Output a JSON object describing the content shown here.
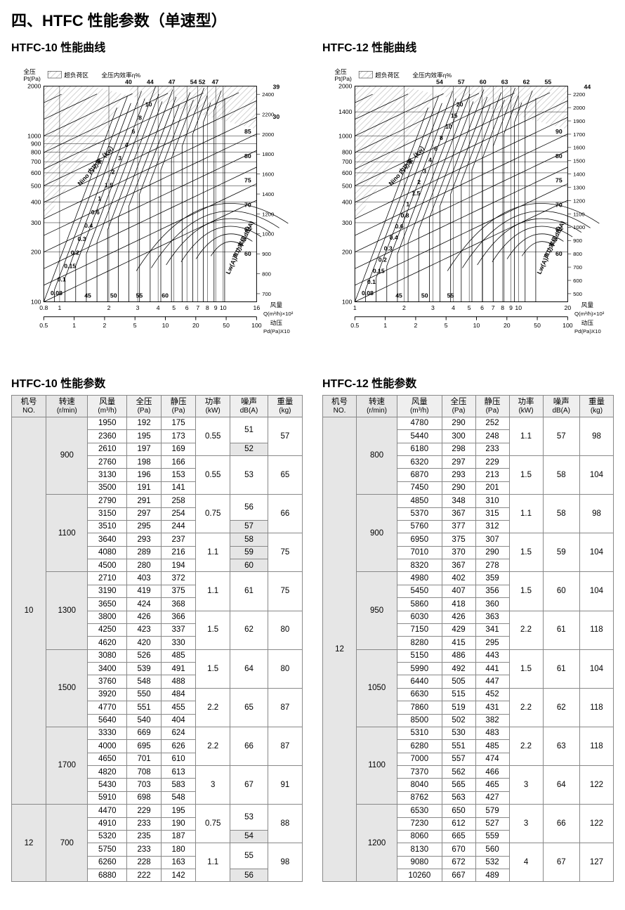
{
  "page_title": "四、HTFC 性能参数（单速型）",
  "left": {
    "curve_title": "HTFC-10 性能曲线",
    "param_title": "HTFC-10 性能参数"
  },
  "right": {
    "curve_title": "HTFC-12 性能曲线",
    "param_title": "HTFC-12 性能参数"
  },
  "chart_common": {
    "y1_label_top": "全压",
    "y1_label_bottom": "Pt(Pa)",
    "legend_overload": "超负荷区",
    "legend_eff": "全压内效率η%",
    "x1_label": "风量",
    "x1_unit": "Q(m³/h)×10²",
    "x2_label": "动压",
    "x2_unit": "Pd(Pa)X10",
    "power_label": "Nino 内功率（kw）",
    "sound_label": "Lw(A)声功率级dB(A)",
    "bg_color": "#ffffff",
    "hatch_color": "#d0d0d0",
    "grid_color": "#000000",
    "axis_fontsize": 9,
    "label_fontsize": 9,
    "line_width": 0.8
  },
  "chart10": {
    "y1_ticks": [
      100,
      200,
      300,
      400,
      500,
      600,
      700,
      800,
      900,
      1000,
      2000
    ],
    "y1_tick_labels": [
      "100",
      "200",
      "300",
      "400",
      "500",
      "600",
      "700",
      "800",
      "900",
      "1000",
      "2000"
    ],
    "x1_ticks": [
      0.8,
      1,
      2,
      3,
      4,
      5,
      6,
      7,
      8,
      9,
      10,
      16
    ],
    "x1_tick_labels": [
      "0.8",
      "1",
      "2",
      "3",
      "4",
      "5",
      "6",
      "7",
      "8",
      "9",
      "10",
      "16"
    ],
    "x2_ticks": [
      0.5,
      1,
      2,
      5,
      10,
      20,
      50,
      100
    ],
    "y2_ticks": [
      700,
      800,
      900,
      1000,
      1200,
      1400,
      1600,
      1800,
      2000,
      2200,
      2400
    ],
    "y3_label": "39",
    "y3_mid": "30",
    "y3_right": [
      "85",
      "80",
      "75",
      "70",
      "65",
      "60"
    ],
    "eff_top": [
      "40",
      "44",
      "47",
      "54 52",
      "47"
    ],
    "power_labels": [
      "0.08",
      "0.1",
      "0.15",
      "0.2",
      "0.3",
      "0.4",
      "0.6",
      "1",
      "1.5",
      "2",
      "3",
      "4",
      "6",
      "8",
      "10"
    ],
    "bottom_labels": [
      "45",
      "50",
      "55",
      "60"
    ]
  },
  "chart12": {
    "y1_ticks": [
      100,
      200,
      300,
      400,
      500,
      600,
      700,
      800,
      1000,
      1400,
      2000
    ],
    "y1_tick_labels": [
      "100",
      "200",
      "300",
      "400",
      "500",
      "600",
      "700",
      "800",
      "1000",
      "1400",
      "2000"
    ],
    "x1_ticks": [
      1,
      2,
      3,
      4,
      5,
      6,
      7,
      8,
      9,
      10,
      20
    ],
    "x1_tick_labels": [
      "1",
      "2",
      "3",
      "4",
      "5",
      "6",
      "7",
      "8",
      "9",
      "10",
      "20"
    ],
    "x2_ticks": [
      0.5,
      1,
      2,
      5,
      10,
      20,
      50,
      100
    ],
    "y2_ticks": [
      500,
      600,
      700,
      800,
      900,
      1000,
      1100,
      1200,
      1300,
      1400,
      1500,
      1600,
      1700,
      1900,
      2000,
      2200
    ],
    "y3_label": "44",
    "y3_right": [
      "90",
      "80",
      "75",
      "70",
      "65",
      "60"
    ],
    "eff_top": [
      "54",
      "57",
      "60",
      "63",
      "62",
      "55"
    ],
    "power_labels": [
      "0.08",
      "0.1",
      "0.15",
      "0.2",
      "0.3",
      "0.4",
      "0.6",
      "0.8",
      "1",
      "1.5",
      "2",
      "3",
      "4",
      "6",
      "8",
      "10",
      "15",
      "20"
    ],
    "bottom_labels": [
      "45",
      "50",
      "55"
    ]
  },
  "columns": [
    {
      "h1": "机号",
      "h2": "NO."
    },
    {
      "h1": "转速",
      "h2": "(r/min)"
    },
    {
      "h1": "风量",
      "h2": "(m³/h)"
    },
    {
      "h1": "全压",
      "h2": "(Pa)"
    },
    {
      "h1": "静压",
      "h2": "(Pa)"
    },
    {
      "h1": "功率",
      "h2": "(kW)"
    },
    {
      "h1": "噪声",
      "h2": "dB(A)"
    },
    {
      "h1": "重量",
      "h2": "(kg)"
    }
  ],
  "table10": {
    "model_groups": [
      {
        "no": "10",
        "speeds": [
          {
            "rpm": "900",
            "subgroups": [
              {
                "rows": [
                  [
                    "1950",
                    "192",
                    "175"
                  ],
                  [
                    "2360",
                    "195",
                    "173"
                  ],
                  [
                    "2610",
                    "197",
                    "169"
                  ]
                ],
                "kw": "0.55",
                "db": [
                  "51",
                  "52"
                ],
                "kg": "57"
              },
              {
                "rows": [
                  [
                    "2760",
                    "198",
                    "166"
                  ],
                  [
                    "3130",
                    "196",
                    "153"
                  ],
                  [
                    "3500",
                    "191",
                    "141"
                  ]
                ],
                "kw": "0.55",
                "db": [
                  "53"
                ],
                "kg": "65"
              }
            ]
          },
          {
            "rpm": "1100",
            "subgroups": [
              {
                "rows": [
                  [
                    "2790",
                    "291",
                    "258"
                  ],
                  [
                    "3150",
                    "297",
                    "254"
                  ],
                  [
                    "3510",
                    "295",
                    "244"
                  ]
                ],
                "kw": "0.75",
                "db": [
                  "56",
                  "57"
                ],
                "kg": "66"
              },
              {
                "rows": [
                  [
                    "3640",
                    "293",
                    "237"
                  ],
                  [
                    "4080",
                    "289",
                    "216"
                  ],
                  [
                    "4500",
                    "280",
                    "194"
                  ]
                ],
                "kw": "1.1",
                "db": [
                  "58",
                  "59",
                  "60"
                ],
                "kg": "75"
              }
            ]
          },
          {
            "rpm": "1300",
            "subgroups": [
              {
                "rows": [
                  [
                    "2710",
                    "403",
                    "372"
                  ],
                  [
                    "3190",
                    "419",
                    "375"
                  ],
                  [
                    "3650",
                    "424",
                    "368"
                  ]
                ],
                "kw": "1.1",
                "db": [
                  "61"
                ],
                "kg": "75"
              },
              {
                "rows": [
                  [
                    "3800",
                    "426",
                    "366"
                  ],
                  [
                    "4250",
                    "423",
                    "337"
                  ],
                  [
                    "4620",
                    "420",
                    "330"
                  ]
                ],
                "kw": "1.5",
                "db": [
                  "62"
                ],
                "kg": "80"
              }
            ]
          },
          {
            "rpm": "1500",
            "subgroups": [
              {
                "rows": [
                  [
                    "3080",
                    "526",
                    "485"
                  ],
                  [
                    "3400",
                    "539",
                    "491"
                  ],
                  [
                    "3760",
                    "548",
                    "488"
                  ]
                ],
                "kw": "1.5",
                "db": [
                  "64"
                ],
                "kg": "80"
              },
              {
                "rows": [
                  [
                    "3920",
                    "550",
                    "484"
                  ],
                  [
                    "4770",
                    "551",
                    "455"
                  ],
                  [
                    "5640",
                    "540",
                    "404"
                  ]
                ],
                "kw": "2.2",
                "db": [
                  "65"
                ],
                "kg": "87"
              }
            ]
          },
          {
            "rpm": "1700",
            "subgroups": [
              {
                "rows": [
                  [
                    "3330",
                    "669",
                    "624"
                  ],
                  [
                    "4000",
                    "695",
                    "626"
                  ],
                  [
                    "4650",
                    "701",
                    "610"
                  ]
                ],
                "kw": "2.2",
                "db": [
                  "66"
                ],
                "kg": "87"
              },
              {
                "rows": [
                  [
                    "4820",
                    "708",
                    "613"
                  ],
                  [
                    "5430",
                    "703",
                    "583"
                  ],
                  [
                    "5910",
                    "698",
                    "548"
                  ]
                ],
                "kw": "3",
                "db": [
                  "67"
                ],
                "kg": "91"
              }
            ]
          }
        ]
      },
      {
        "no": "12",
        "speeds": [
          {
            "rpm": "700",
            "subgroups": [
              {
                "rows": [
                  [
                    "4470",
                    "229",
                    "195"
                  ],
                  [
                    "4910",
                    "233",
                    "190"
                  ],
                  [
                    "5320",
                    "235",
                    "187"
                  ]
                ],
                "kw": "0.75",
                "db": [
                  "53",
                  "54"
                ],
                "kg": "88"
              },
              {
                "rows": [
                  [
                    "5750",
                    "233",
                    "180"
                  ],
                  [
                    "6260",
                    "228",
                    "163"
                  ],
                  [
                    "6880",
                    "222",
                    "142"
                  ]
                ],
                "kw": "1.1",
                "db": [
                  "55",
                  "56"
                ],
                "kg": "98"
              }
            ]
          }
        ]
      }
    ]
  },
  "table12": {
    "model_groups": [
      {
        "no": "12",
        "speeds": [
          {
            "rpm": "800",
            "subgroups": [
              {
                "rows": [
                  [
                    "4780",
                    "290",
                    "252"
                  ],
                  [
                    "5440",
                    "300",
                    "248"
                  ],
                  [
                    "6180",
                    "298",
                    "233"
                  ]
                ],
                "kw": "1.1",
                "db": [
                  "57"
                ],
                "kg": "98"
              },
              {
                "rows": [
                  [
                    "6320",
                    "297",
                    "229"
                  ],
                  [
                    "6870",
                    "293",
                    "213"
                  ],
                  [
                    "7450",
                    "290",
                    "201"
                  ]
                ],
                "kw": "1.5",
                "db": [
                  "58"
                ],
                "kg": "104"
              }
            ]
          },
          {
            "rpm": "900",
            "subgroups": [
              {
                "rows": [
                  [
                    "4850",
                    "348",
                    "310"
                  ],
                  [
                    "5370",
                    "367",
                    "315"
                  ],
                  [
                    "5760",
                    "377",
                    "312"
                  ]
                ],
                "kw": "1.1",
                "db": [
                  "58"
                ],
                "kg": "98"
              },
              {
                "rows": [
                  [
                    "6950",
                    "375",
                    "307"
                  ],
                  [
                    "7010",
                    "370",
                    "290"
                  ],
                  [
                    "8320",
                    "367",
                    "278"
                  ]
                ],
                "kw": "1.5",
                "db": [
                  "59"
                ],
                "kg": "104"
              }
            ]
          },
          {
            "rpm": "950",
            "subgroups": [
              {
                "rows": [
                  [
                    "4980",
                    "402",
                    "359"
                  ],
                  [
                    "5450",
                    "407",
                    "356"
                  ],
                  [
                    "5860",
                    "418",
                    "360"
                  ]
                ],
                "kw": "1.5",
                "db": [
                  "60"
                ],
                "kg": "104"
              },
              {
                "rows": [
                  [
                    "6030",
                    "426",
                    "363"
                  ],
                  [
                    "7150",
                    "429",
                    "341"
                  ],
                  [
                    "8280",
                    "415",
                    "295"
                  ]
                ],
                "kw": "2.2",
                "db": [
                  "61"
                ],
                "kg": "118"
              }
            ]
          },
          {
            "rpm": "1050",
            "subgroups": [
              {
                "rows": [
                  [
                    "5150",
                    "486",
                    "443"
                  ],
                  [
                    "5990",
                    "492",
                    "441"
                  ],
                  [
                    "6440",
                    "505",
                    "447"
                  ]
                ],
                "kw": "1.5",
                "db": [
                  "61"
                ],
                "kg": "104"
              },
              {
                "rows": [
                  [
                    "6630",
                    "515",
                    "452"
                  ],
                  [
                    "7860",
                    "519",
                    "431"
                  ],
                  [
                    "8500",
                    "502",
                    "382"
                  ]
                ],
                "kw": "2.2",
                "db": [
                  "62"
                ],
                "kg": "118"
              }
            ]
          },
          {
            "rpm": "1100",
            "subgroups": [
              {
                "rows": [
                  [
                    "5310",
                    "530",
                    "483"
                  ],
                  [
                    "6280",
                    "551",
                    "485"
                  ],
                  [
                    "7000",
                    "557",
                    "474"
                  ]
                ],
                "kw": "2.2",
                "db": [
                  "63"
                ],
                "kg": "118"
              },
              {
                "rows": [
                  [
                    "7370",
                    "562",
                    "466"
                  ],
                  [
                    "8040",
                    "565",
                    "465"
                  ],
                  [
                    "8762",
                    "563",
                    "427"
                  ]
                ],
                "kw": "3",
                "db": [
                  "64"
                ],
                "kg": "122"
              }
            ]
          },
          {
            "rpm": "1200",
            "subgroups": [
              {
                "rows": [
                  [
                    "6530",
                    "650",
                    "579"
                  ],
                  [
                    "7230",
                    "612",
                    "527"
                  ],
                  [
                    "8060",
                    "665",
                    "559"
                  ]
                ],
                "kw": "3",
                "db": [
                  "66"
                ],
                "kg": "122"
              },
              {
                "rows": [
                  [
                    "8130",
                    "670",
                    "560"
                  ],
                  [
                    "9080",
                    "672",
                    "532"
                  ],
                  [
                    "10260",
                    "667",
                    "489"
                  ]
                ],
                "kw": "4",
                "db": [
                  "67"
                ],
                "kg": "127"
              }
            ]
          }
        ]
      }
    ]
  }
}
